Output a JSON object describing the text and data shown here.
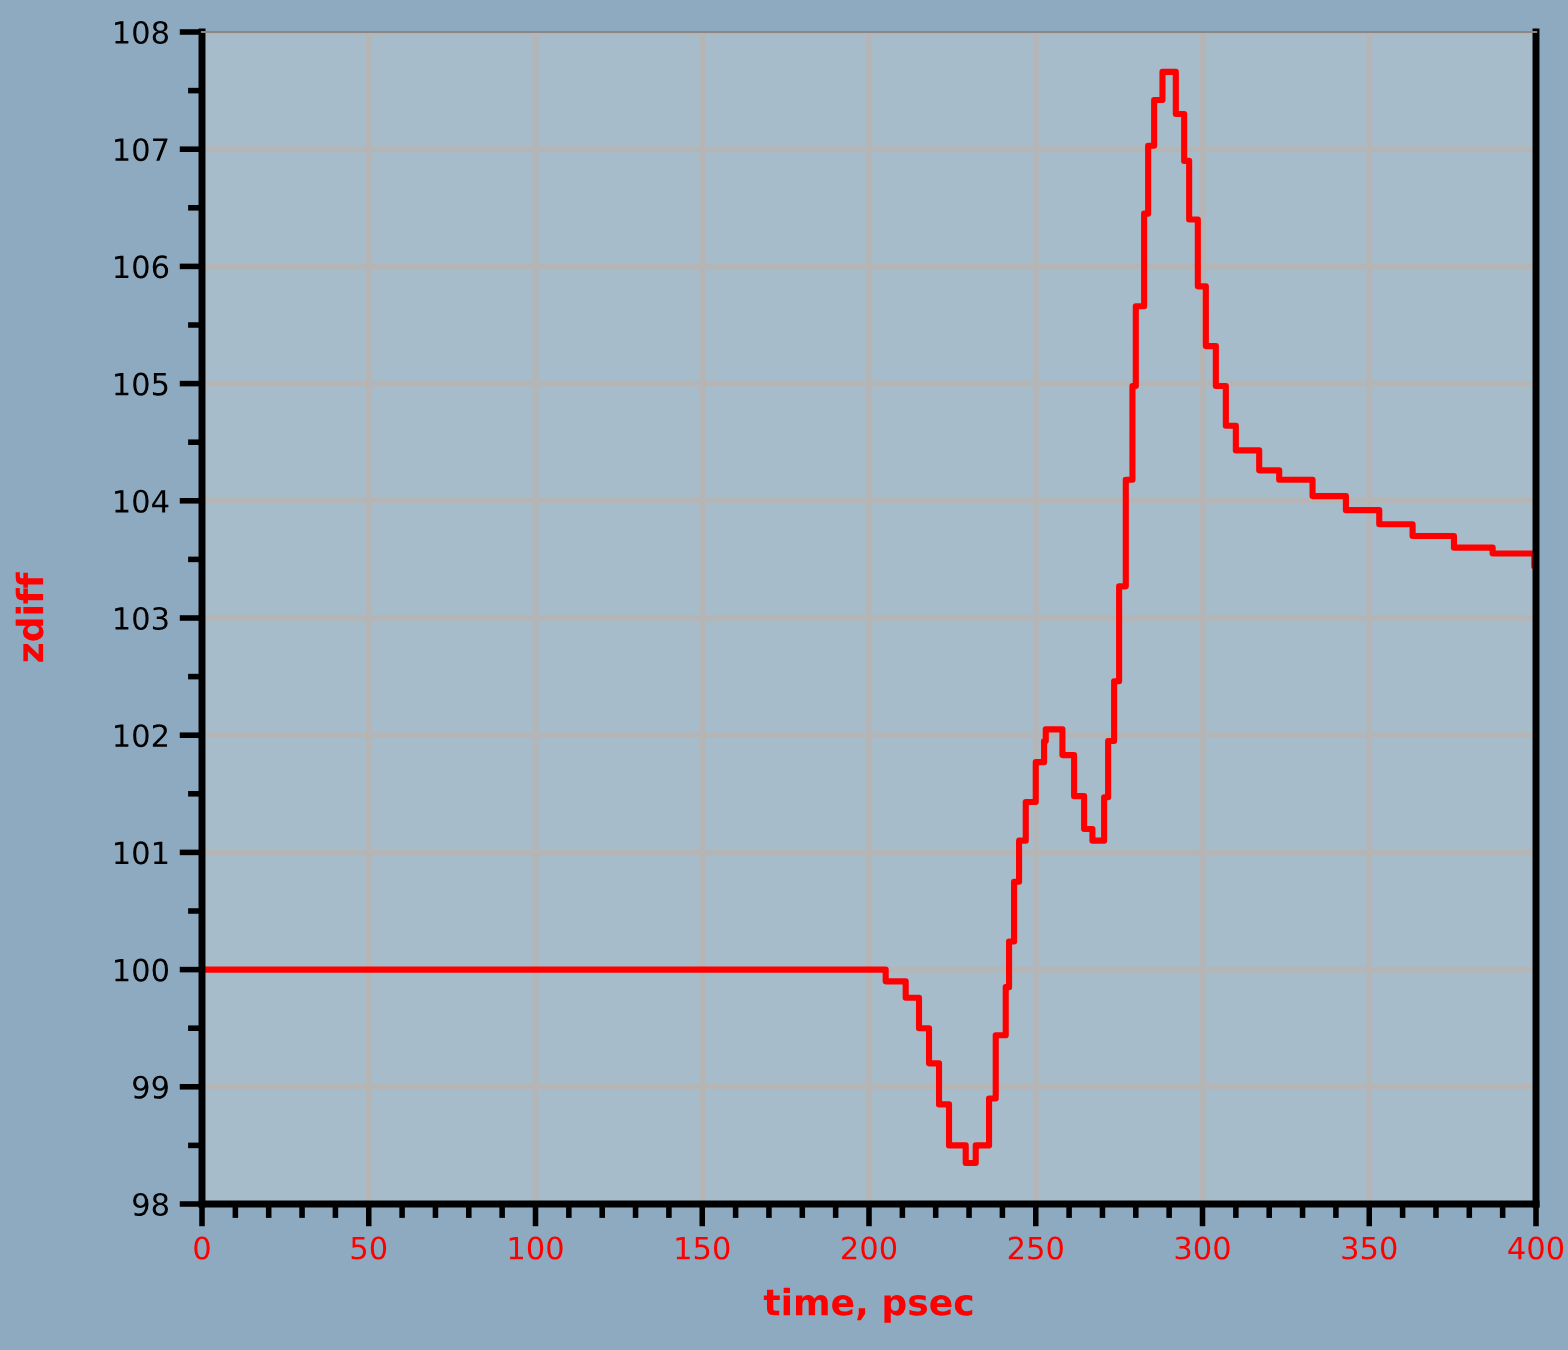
{
  "chart_data": {
    "type": "step",
    "xlabel": "time, psec",
    "ylabel": "zdiff",
    "xlim": [
      0,
      400
    ],
    "xticks": [
      0,
      50,
      100,
      150,
      200,
      250,
      300,
      350,
      400
    ],
    "ylim": [
      98,
      108
    ],
    "yticks": [
      98,
      99,
      100,
      101,
      102,
      103,
      104,
      105,
      106,
      107,
      108
    ],
    "grid": true,
    "marker": "none",
    "line_style": "solid",
    "series": [
      {
        "color": "#ff0000",
        "x": [
          0,
          203,
          205,
          211,
          215,
          218,
          221,
          224,
          229,
          232,
          236,
          238,
          241,
          242,
          243.5,
          245,
          247,
          250,
          252.5,
          253,
          255.5,
          258,
          261.5,
          264.5,
          267,
          270.5,
          271.7,
          273.5,
          275,
          277,
          279,
          280,
          282.5,
          283.7,
          285.5,
          288,
          290,
          292,
          294.5,
          296,
          298.6,
          301,
          304,
          307,
          310,
          317,
          323,
          333,
          343,
          353,
          363,
          375.4,
          387,
          399.5,
          400
        ],
        "values": [
          100,
          100,
          99.9,
          99.76,
          99.5,
          99.2,
          98.85,
          98.5,
          98.35,
          98.5,
          98.9,
          99.44,
          99.85,
          100.24,
          100.75,
          101.1,
          101.43,
          101.77,
          101.95,
          102.05,
          102.05,
          101.83,
          101.48,
          101.2,
          101.1,
          101.47,
          101.95,
          102.46,
          103.27,
          104.18,
          104.98,
          105.66,
          106.45,
          107.03,
          107.42,
          107.66,
          107.66,
          107.3,
          106.9,
          106.4,
          105.83,
          105.32,
          104.98,
          104.64,
          104.43,
          104.26,
          104.18,
          104.04,
          103.92,
          103.8,
          103.7,
          103.6,
          103.55,
          103.44,
          103.44
        ]
      }
    ]
  }
}
